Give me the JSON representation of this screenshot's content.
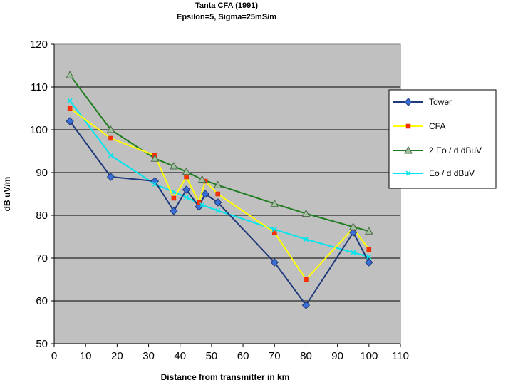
{
  "chart_data": {
    "type": "line",
    "title": "Tanta CFA (1991)",
    "subtitle": "Epsilon=5, Sigma=25mS/m",
    "xlabel": "Distance from transmitter in km",
    "ylabel": "dB uV/m",
    "xlim": [
      0,
      110
    ],
    "ylim": [
      50,
      120
    ],
    "xticks": [
      0,
      10,
      20,
      30,
      40,
      50,
      60,
      70,
      80,
      90,
      100,
      110
    ],
    "yticks": [
      50,
      60,
      70,
      80,
      90,
      100,
      110,
      120
    ],
    "grid": "horizontal",
    "legend_position": "right",
    "background": "#c0c0c0",
    "series": [
      {
        "name": "Tower",
        "color": "#1f3a7a",
        "marker": "diamond",
        "marker_color": "#3a6fd8",
        "x": [
          5,
          18,
          32,
          38,
          42,
          46,
          48,
          52,
          70,
          80,
          95,
          100
        ],
        "y": [
          102,
          89,
          88,
          81,
          86,
          82,
          85,
          83,
          69,
          59,
          76,
          69
        ]
      },
      {
        "name": "CFA",
        "color": "#ffff00",
        "marker": "square",
        "marker_color": "#ff3300",
        "x": [
          5,
          18,
          32,
          38,
          42,
          46,
          48,
          52,
          70,
          80,
          95,
          100
        ],
        "y": [
          105,
          98,
          94,
          84,
          89,
          83,
          88,
          85,
          76,
          65,
          77,
          72
        ]
      },
      {
        "name": "2 Eo / d dBuV",
        "color": "#1e7d1e",
        "marker": "triangle",
        "marker_color": "#a0c0a0",
        "x": [
          5,
          18,
          32,
          38,
          42,
          47,
          52,
          70,
          80,
          95,
          100
        ],
        "y": [
          112.8,
          100,
          93.3,
          91.5,
          90.2,
          88.4,
          87.1,
          82.7,
          80.4,
          77.3,
          76.3
        ]
      },
      {
        "name": "Eo / d dBuV",
        "color": "#00e5ee",
        "marker": "x",
        "marker_color": "#00e5ee",
        "x": [
          5,
          18,
          32,
          38,
          42,
          47,
          52,
          70,
          80,
          95,
          100
        ],
        "y": [
          106.8,
          94,
          87.3,
          85.5,
          84.2,
          82.4,
          81.1,
          76.7,
          74.4,
          71.3,
          70.3
        ]
      }
    ]
  }
}
